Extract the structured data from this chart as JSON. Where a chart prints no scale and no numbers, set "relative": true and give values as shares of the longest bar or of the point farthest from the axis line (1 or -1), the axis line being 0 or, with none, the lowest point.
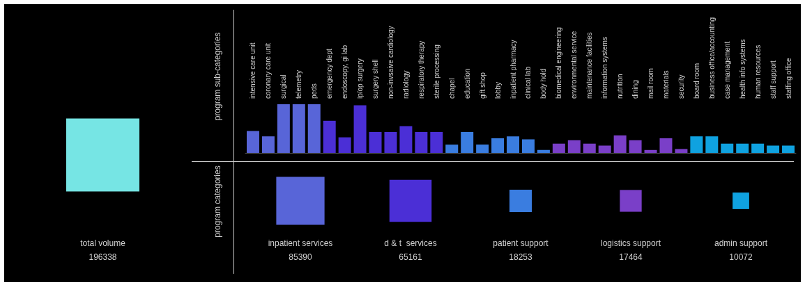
{
  "chart_data": [
    {
      "type": "bar",
      "relative": true,
      "ylabel": "program sub-categories",
      "categories": [
        "intensive care unit",
        "coronary care unit",
        "surgical",
        "telemetry",
        "peds",
        "emergency dept",
        "endoscopy, gi lab",
        "ip/op surgery",
        "surgery shell",
        "non-invsaive cardiology",
        "radiology",
        "respiratory therapy",
        "sterile processing",
        "chapel",
        "education",
        "gift shop",
        "lobby",
        "inpatient pharmacy",
        "clinical lab",
        "body hold",
        "biomedical engineering",
        "environmental service",
        "maintenance facilities",
        "information systems",
        "nutrition",
        "dining",
        "mail room",
        "materials",
        "security",
        "board room",
        "business office/accounting",
        "case management",
        "health info systems",
        "human resources",
        "staff support",
        "staffing office"
      ],
      "values": [
        0.45,
        0.34,
        1,
        1,
        1,
        0.66,
        0.32,
        0.98,
        0.43,
        0.43,
        0.55,
        0.43,
        0.43,
        0.17,
        0.43,
        0.17,
        0.3,
        0.34,
        0.28,
        0.06,
        0.19,
        0.26,
        0.19,
        0.15,
        0.36,
        0.26,
        0.06,
        0.3,
        0.08,
        0.34,
        0.34,
        0.19,
        0.19,
        0.19,
        0.15,
        0.15
      ],
      "colors": [
        "#5865d8",
        "#5865d8",
        "#5865d8",
        "#5865d8",
        "#5865d8",
        "#4b2fd6",
        "#4b2fd6",
        "#4b2fd6",
        "#4b2fd6",
        "#4b2fd6",
        "#4b2fd6",
        "#4b2fd6",
        "#4b2fd6",
        "#3a7de0",
        "#3a7de0",
        "#3a7de0",
        "#3a7de0",
        "#3a7de0",
        "#3a7de0",
        "#3a7de0",
        "#7a3fc8",
        "#7a3fc8",
        "#7a3fc8",
        "#7a3fc8",
        "#7a3fc8",
        "#7a3fc8",
        "#7a3fc8",
        "#7a3fc8",
        "#7a3fc8",
        "#0fa2e0",
        "#0fa2e0",
        "#0fa2e0",
        "#0fa2e0",
        "#0fa2e0",
        "#0fa2e0",
        "#0fa2e0"
      ]
    },
    {
      "type": "other",
      "ylabel": "program categories",
      "data_labels": true,
      "categories": [
        "total volume",
        "inpatient services",
        "d & t  services",
        "patient support",
        "logistics support",
        "admin support"
      ],
      "values": [
        196338,
        85390,
        65161,
        18253,
        17464,
        10072
      ],
      "colors": [
        "#76e5e4",
        "#5865d8",
        "#4b2fd6",
        "#3a7de0",
        "#7a3fc8",
        "#0fa2e0"
      ]
    }
  ]
}
